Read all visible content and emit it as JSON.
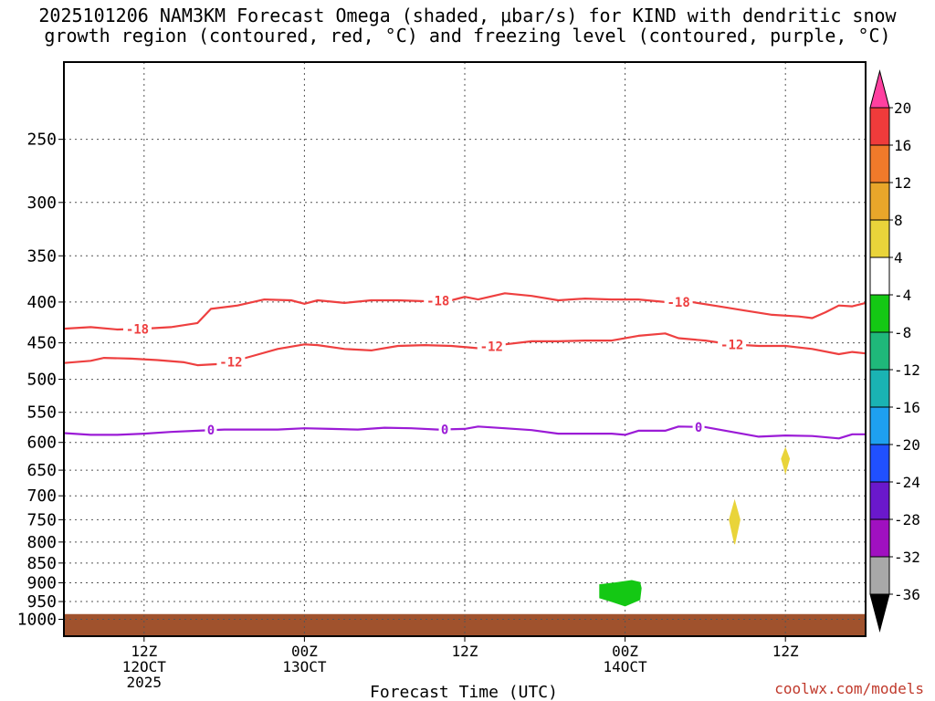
{
  "title": {
    "line1": "2025101206 NAM3KM Forecast Omega (shaded, μbar/s) for KIND with dendritic snow",
    "line2": "growth region (contoured, red, °C) and freezing level (contoured, purple, °C)"
  },
  "footer": "coolwx.com/models",
  "chart_data": {
    "type": "contour",
    "xlabel": "Forecast Time (UTC)",
    "ylabel": "",
    "x_range_hours": [
      6,
      66
    ],
    "x_ticks": [
      {
        "hour": 12,
        "lines": [
          "12Z",
          "12OCT",
          "2025"
        ]
      },
      {
        "hour": 24,
        "lines": [
          "00Z",
          "13OCT"
        ]
      },
      {
        "hour": 36,
        "lines": [
          "12Z"
        ]
      },
      {
        "hour": 48,
        "lines": [
          "00Z",
          "14OCT"
        ]
      },
      {
        "hour": 60,
        "lines": [
          "12Z"
        ]
      }
    ],
    "y_scale": "log-pressure",
    "y_range_hPa": [
      1050,
      200
    ],
    "y_ticks": [
      250,
      300,
      350,
      400,
      450,
      500,
      550,
      600,
      650,
      700,
      750,
      800,
      850,
      900,
      950,
      1000
    ],
    "grid": true,
    "colorbar": {
      "labels": [
        "20",
        "16",
        "12",
        "8",
        "4",
        "-4",
        "-8",
        "-12",
        "-16",
        "-20",
        "-24",
        "-28",
        "-32",
        "-36"
      ],
      "colors": [
        "#ff40a0",
        "#ef3b3b",
        "#f07a2a",
        "#e8a62a",
        "#e9d43a",
        "#ffffff",
        "#14c814",
        "#1fb87a",
        "#1ab3b3",
        "#1ea0f0",
        "#2050ff",
        "#6a18cc",
        "#a010c0",
        "#a8a8a8",
        "#000000"
      ]
    },
    "contours": [
      {
        "label": "-18",
        "color": "#ee4040",
        "points": [
          [
            6,
            432
          ],
          [
            8,
            430
          ],
          [
            10,
            433
          ],
          [
            12,
            432
          ],
          [
            14,
            430
          ],
          [
            16,
            425
          ],
          [
            17,
            408
          ],
          [
            19,
            404
          ],
          [
            21,
            397
          ],
          [
            23,
            398
          ],
          [
            24,
            402
          ],
          [
            25,
            398
          ],
          [
            27,
            401
          ],
          [
            29,
            398
          ],
          [
            31,
            398
          ],
          [
            33,
            399
          ],
          [
            35,
            398
          ],
          [
            36,
            394
          ],
          [
            37,
            397
          ],
          [
            39,
            390
          ],
          [
            41,
            393
          ],
          [
            43,
            398
          ],
          [
            45,
            396
          ],
          [
            47,
            397
          ],
          [
            49,
            397
          ],
          [
            51,
            400
          ],
          [
            53,
            400
          ],
          [
            55,
            405
          ],
          [
            57,
            410
          ],
          [
            59,
            415
          ],
          [
            61,
            417
          ],
          [
            62,
            419
          ],
          [
            63,
            412
          ],
          [
            64,
            404
          ],
          [
            65,
            405
          ],
          [
            66,
            401
          ]
        ],
        "labels_at": [
          11.5,
          34,
          52
        ]
      },
      {
        "label": "-12",
        "color": "#ee4040",
        "points": [
          [
            6,
            477
          ],
          [
            8,
            474
          ],
          [
            9,
            470
          ],
          [
            11,
            471
          ],
          [
            13,
            473
          ],
          [
            15,
            476
          ],
          [
            16,
            480
          ],
          [
            18,
            478
          ],
          [
            20,
            468
          ],
          [
            22,
            458
          ],
          [
            24,
            452
          ],
          [
            25,
            453
          ],
          [
            27,
            458
          ],
          [
            29,
            460
          ],
          [
            31,
            454
          ],
          [
            33,
            453
          ],
          [
            35,
            454
          ],
          [
            37,
            457
          ],
          [
            39,
            452
          ],
          [
            41,
            448
          ],
          [
            43,
            448
          ],
          [
            45,
            447
          ],
          [
            47,
            447
          ],
          [
            49,
            441
          ],
          [
            51,
            438
          ],
          [
            52,
            444
          ],
          [
            54,
            447
          ],
          [
            56,
            452
          ],
          [
            58,
            454
          ],
          [
            60,
            454
          ],
          [
            62,
            458
          ],
          [
            64,
            465
          ],
          [
            65,
            462
          ],
          [
            66,
            464
          ]
        ],
        "labels_at": [
          18.5,
          38,
          56
        ]
      },
      {
        "label": "0",
        "color": "#9b1bd6",
        "points": [
          [
            6,
            584
          ],
          [
            8,
            587
          ],
          [
            10,
            587
          ],
          [
            12,
            585
          ],
          [
            14,
            582
          ],
          [
            16,
            580
          ],
          [
            18,
            578
          ],
          [
            20,
            578
          ],
          [
            22,
            578
          ],
          [
            24,
            576
          ],
          [
            26,
            577
          ],
          [
            28,
            578
          ],
          [
            30,
            575
          ],
          [
            32,
            576
          ],
          [
            34,
            578
          ],
          [
            36,
            577
          ],
          [
            37,
            573
          ],
          [
            39,
            576
          ],
          [
            41,
            579
          ],
          [
            43,
            585
          ],
          [
            45,
            585
          ],
          [
            47,
            585
          ],
          [
            48,
            587
          ],
          [
            49,
            580
          ],
          [
            51,
            580
          ],
          [
            52,
            573
          ],
          [
            54,
            574
          ],
          [
            56,
            582
          ],
          [
            58,
            590
          ],
          [
            60,
            588
          ],
          [
            62,
            589
          ],
          [
            64,
            593
          ],
          [
            65,
            586
          ],
          [
            66,
            586
          ]
        ],
        "labels_at": [
          17,
          34.5,
          53.5
        ]
      }
    ],
    "shaded_regions": [
      {
        "value_range": [
          -8,
          -4
        ],
        "color": "#14c814",
        "points": [
          [
            46.1,
            905
          ],
          [
            47.3,
            900
          ],
          [
            48.5,
            894
          ],
          [
            49.1,
            899
          ],
          [
            49.2,
            914
          ],
          [
            49.1,
            945
          ],
          [
            48.0,
            962
          ],
          [
            47.0,
            950
          ],
          [
            46.1,
            940
          ]
        ]
      },
      {
        "value_range": [
          4,
          8
        ],
        "color": "#e9d43a",
        "points": [
          [
            60,
            610
          ],
          [
            60.3,
            629
          ],
          [
            60,
            655
          ],
          [
            59.7,
            629
          ]
        ]
      },
      {
        "value_range": [
          4,
          8
        ],
        "color": "#e9d43a",
        "points": [
          [
            56.2,
            710
          ],
          [
            56.6,
            750
          ],
          [
            56.2,
            805
          ],
          [
            55.8,
            750
          ]
        ]
      }
    ]
  }
}
